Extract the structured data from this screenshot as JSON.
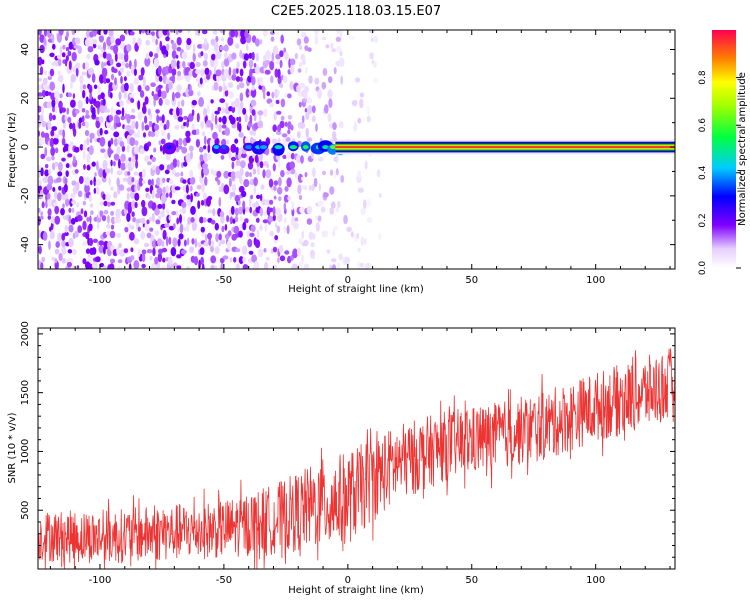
{
  "title": "C2E5.2025.118.03.15.E07",
  "colorbar": {
    "label": "Normalized spectral amplitude",
    "ticks": [
      0.0,
      0.2,
      0.4,
      0.6,
      0.8
    ],
    "tick_labels": [
      "0.0",
      "0.2",
      "0.4",
      "0.6",
      "0.8"
    ],
    "range": [
      0,
      1
    ]
  },
  "chart_data": [
    {
      "type": "heatmap",
      "xlabel": "Height of straight line (km)",
      "ylabel": "Frequency (Hz)",
      "xlim": [
        -125,
        132
      ],
      "ylim": [
        -50,
        48
      ],
      "xticks": [
        -100,
        -50,
        0,
        50,
        100
      ],
      "xtick_labels": [
        "-100",
        "-50",
        "0",
        "50",
        "100"
      ],
      "yticks": [
        -40,
        -20,
        0,
        20,
        40
      ],
      "ytick_labels": [
        "-40",
        "-20",
        "0",
        "20",
        "40"
      ],
      "features": {
        "dc_band_frequency": 0,
        "dc_band_start_x": -5,
        "dc_band_amplitude": 1.0,
        "noise_region": [
          -125,
          5
        ],
        "noise_amplitude": 0.1
      }
    },
    {
      "type": "line",
      "xlabel": "Height of straight line (km)",
      "ylabel": "SNR (10 * v/v)",
      "xlim": [
        -125,
        132
      ],
      "ylim": [
        0,
        2050
      ],
      "xticks": [
        -100,
        -50,
        0,
        50,
        100
      ],
      "xtick_labels": [
        "-100",
        "-50",
        "0",
        "50",
        "100"
      ],
      "yticks": [
        500,
        1000,
        1500,
        2000
      ],
      "ytick_labels": [
        "500",
        "1000",
        "1500",
        "2000"
      ],
      "color": "#ee3333",
      "trend": {
        "x": [
          -125,
          -100,
          -50,
          -30,
          -10,
          0,
          10,
          20,
          40,
          60,
          80,
          100,
          120,
          132
        ],
        "mean": [
          280,
          270,
          340,
          420,
          560,
          600,
          760,
          900,
          1050,
          1130,
          1220,
          1380,
          1500,
          1580
        ],
        "spread": [
          220,
          230,
          250,
          300,
          380,
          400,
          360,
          330,
          300,
          290,
          300,
          300,
          310,
          320
        ]
      }
    }
  ]
}
